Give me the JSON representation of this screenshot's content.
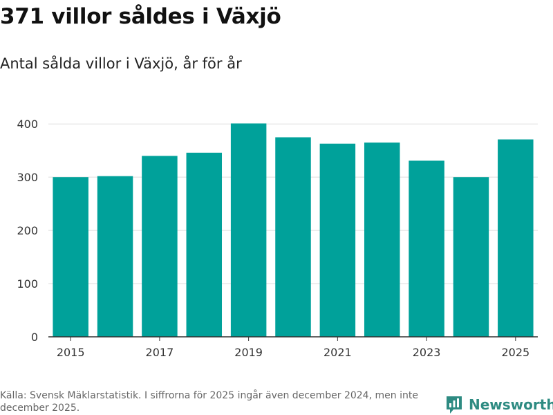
{
  "header": {
    "title": "371 villor såldes i Växjö",
    "subtitle": "Antal sålda villor i Växjö, år för år"
  },
  "footer": {
    "source_text": "Källa: Svensk Mäklarstatistik. I siffrorna för 2025 ingår även december 2024, men inte december 2025.",
    "brand_name": "Newsworthy",
    "brand_icon": "bar-chart-icon"
  },
  "colors": {
    "bar": "#00a19a",
    "grid": "#dddddd",
    "axis": "#333333",
    "brand": "#2e8b82"
  },
  "chart_data": {
    "type": "bar",
    "title": "371 villor såldes i Växjö",
    "subtitle": "Antal sålda villor i Växjö, år för år",
    "xlabel": "",
    "ylabel": "",
    "categories": [
      "2015",
      "2016",
      "2017",
      "2018",
      "2019",
      "2020",
      "2021",
      "2022",
      "2023",
      "2024",
      "2025"
    ],
    "values": [
      300,
      302,
      340,
      346,
      401,
      375,
      363,
      365,
      331,
      300,
      371
    ],
    "x_tick_labels": [
      "2015",
      "2017",
      "2019",
      "2021",
      "2023",
      "2025"
    ],
    "y_ticks": [
      0,
      100,
      200,
      300,
      400
    ],
    "ylim": [
      0,
      425
    ],
    "grid": true,
    "legend": "none"
  }
}
